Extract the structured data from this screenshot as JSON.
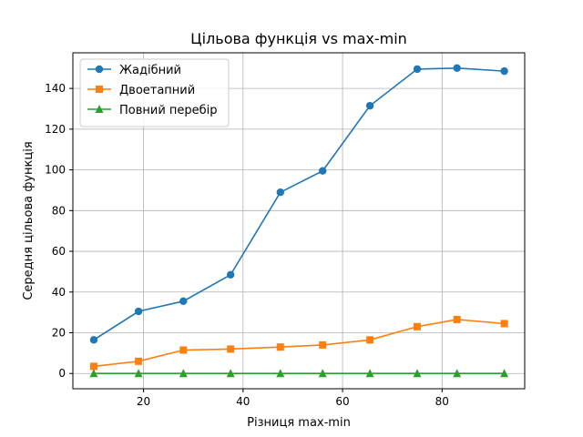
{
  "chart_data": {
    "type": "line",
    "title": "Цільова функція vs max-min",
    "xlabel": "Різниця max-min",
    "ylabel": "Середня цільова функція",
    "xlim": [
      5.8,
      96.6
    ],
    "ylim": [
      -7.5,
      157.5
    ],
    "xticks": [
      20,
      40,
      60,
      80
    ],
    "yticks": [
      0,
      20,
      40,
      60,
      80,
      100,
      120,
      140
    ],
    "grid": true,
    "legend_position": "top-left",
    "x": [
      10,
      19,
      28,
      37.5,
      47.5,
      56,
      65.5,
      75,
      83,
      92.5
    ],
    "series": [
      {
        "name": "Жадібний",
        "color": "#1f77b4",
        "marker": "circle",
        "values": [
          16.5,
          30.5,
          35.5,
          48.5,
          89,
          99.5,
          131.5,
          149.5,
          150,
          148.5
        ]
      },
      {
        "name": "Двоетапний",
        "color": "#ff7f0e",
        "marker": "square",
        "values": [
          3.5,
          6,
          11.5,
          12,
          13,
          14,
          16.5,
          23,
          26.5,
          24.5
        ]
      },
      {
        "name": "Повний перебір",
        "color": "#2ca02c",
        "marker": "triangle",
        "values": [
          0,
          0,
          0,
          0,
          0,
          0,
          0,
          0,
          0,
          0
        ]
      }
    ]
  }
}
